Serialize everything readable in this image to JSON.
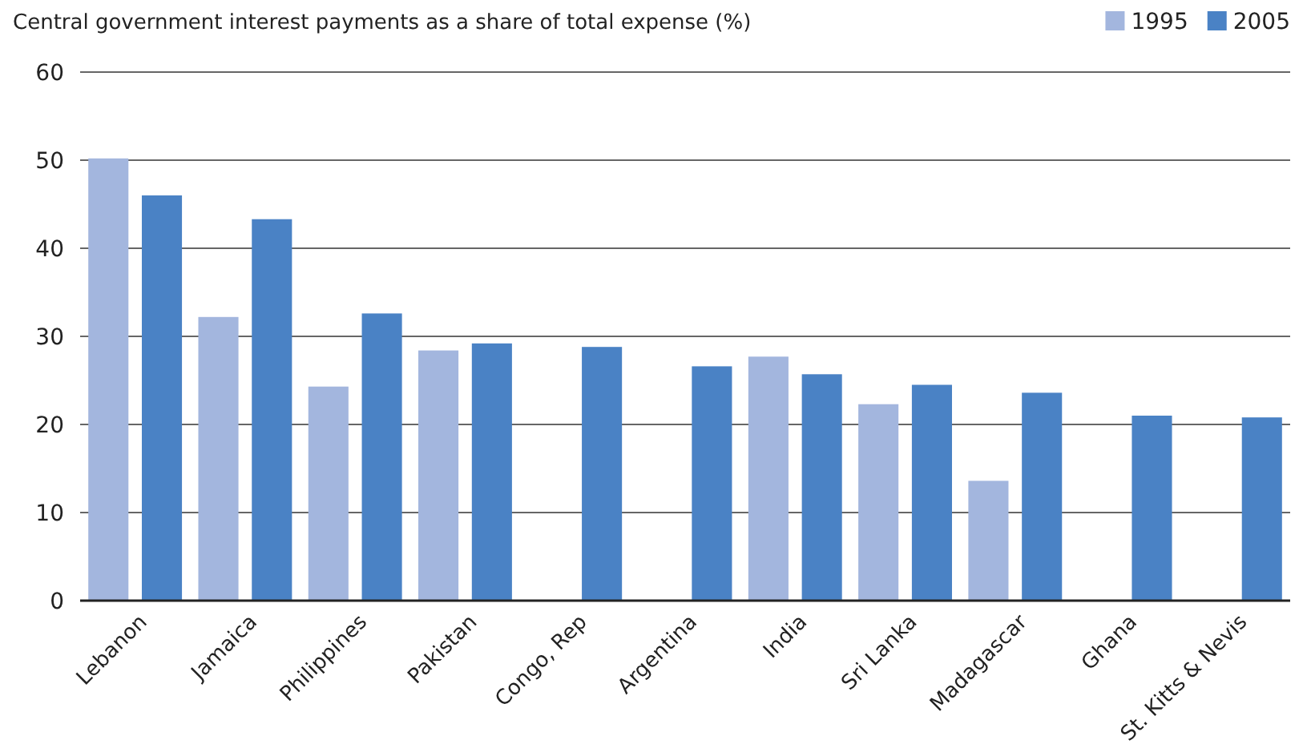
{
  "chart_data": {
    "type": "bar",
    "title": "Central government interest payments as a share of total expense (%)",
    "categories": [
      "Lebanon",
      "Jamaica",
      "Philippines",
      "Pakistan",
      "Congo, Rep",
      "Argentina",
      "India",
      "Sri Lanka",
      "Madagascar",
      "Ghana",
      "St. Kitts & Nevis"
    ],
    "series": [
      {
        "name": "1995",
        "color": "#a3b6de",
        "values": [
          50.2,
          32.2,
          24.3,
          28.4,
          null,
          null,
          27.7,
          22.3,
          13.6,
          null,
          null
        ]
      },
      {
        "name": "2005",
        "color": "#4a82c5",
        "values": [
          46.0,
          43.3,
          32.6,
          29.2,
          28.8,
          26.6,
          25.7,
          24.5,
          23.6,
          21.0,
          20.8
        ]
      }
    ],
    "ylim": [
      0,
      60
    ],
    "yticks": [
      0,
      10,
      20,
      30,
      40,
      50,
      60
    ],
    "grid": "y",
    "legend": "top right"
  }
}
